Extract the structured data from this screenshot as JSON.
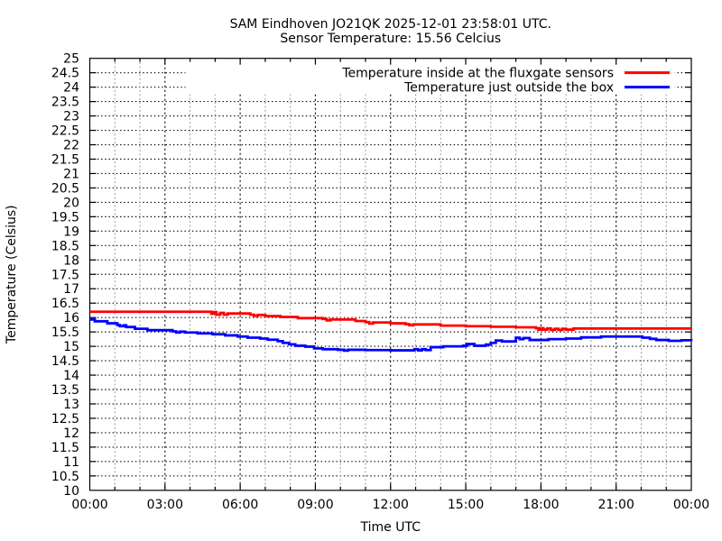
{
  "chart_data": {
    "type": "line",
    "title": "SAM Eindhoven JO21QK 2025-12-01 23:58:01 UTC.",
    "subtitle": "Sensor Temperature: 15.56 Celcius",
    "xlabel": "Time UTC",
    "ylabel": "Temperature (Celsius)",
    "xlim_hours": [
      0,
      24
    ],
    "ylim": [
      10,
      25
    ],
    "y_tick_step": 0.5,
    "x_major_tick_hours": 3,
    "x_minor_tick_hours": 1,
    "x_tick_labels": [
      "00:00",
      "03:00",
      "06:00",
      "09:00",
      "12:00",
      "15:00",
      "18:00",
      "21:00",
      "00:00"
    ],
    "grid": true,
    "legend_position": "top-right-inside",
    "colors": {
      "grid_major": "#000000",
      "grid_minor": "#9b9b9b",
      "axis": "#000000",
      "text": "#000000"
    },
    "series": [
      {
        "name": "Temperature inside at the fluxgate sensors",
        "color": "#ff0000",
        "points_hour_celsius": [
          [
            0,
            16.2
          ],
          [
            4.85,
            16.13
          ],
          [
            4.95,
            16.19
          ],
          [
            5.05,
            16.1
          ],
          [
            5.2,
            16.16
          ],
          [
            5.35,
            16.1
          ],
          [
            5.5,
            16.14
          ],
          [
            6.4,
            16.1
          ],
          [
            6.55,
            16.06
          ],
          [
            6.7,
            16.09
          ],
          [
            7.0,
            16.05
          ],
          [
            7.6,
            16.02
          ],
          [
            8.3,
            15.98
          ],
          [
            9.3,
            15.95
          ],
          [
            9.45,
            15.9
          ],
          [
            9.6,
            15.93
          ],
          [
            10.6,
            15.88
          ],
          [
            11.0,
            15.84
          ],
          [
            11.15,
            15.79
          ],
          [
            11.3,
            15.83
          ],
          [
            12.0,
            15.8
          ],
          [
            12.6,
            15.77
          ],
          [
            12.75,
            15.73
          ],
          [
            12.9,
            15.76
          ],
          [
            14.0,
            15.72
          ],
          [
            15.0,
            15.7
          ],
          [
            16.0,
            15.68
          ],
          [
            17.0,
            15.66
          ],
          [
            17.8,
            15.63
          ],
          [
            17.9,
            15.58
          ],
          [
            18.0,
            15.63
          ],
          [
            18.1,
            15.58
          ],
          [
            18.25,
            15.62
          ],
          [
            18.4,
            15.57
          ],
          [
            18.55,
            15.61
          ],
          [
            18.7,
            15.57
          ],
          [
            18.85,
            15.61
          ],
          [
            19.0,
            15.58
          ],
          [
            19.3,
            15.62
          ],
          [
            24,
            15.62
          ]
        ]
      },
      {
        "name": "Temperature just outside the box",
        "color": "#0000ff",
        "points_hour_celsius": [
          [
            0,
            15.93
          ],
          [
            0.2,
            15.87
          ],
          [
            0.7,
            15.8
          ],
          [
            1.1,
            15.74
          ],
          [
            1.2,
            15.7
          ],
          [
            1.35,
            15.73
          ],
          [
            1.45,
            15.67
          ],
          [
            1.8,
            15.61
          ],
          [
            2.3,
            15.56
          ],
          [
            3.3,
            15.52
          ],
          [
            3.45,
            15.48
          ],
          [
            3.6,
            15.51
          ],
          [
            3.8,
            15.48
          ],
          [
            4.3,
            15.45
          ],
          [
            4.9,
            15.42
          ],
          [
            5.4,
            15.38
          ],
          [
            5.9,
            15.34
          ],
          [
            6.3,
            15.3
          ],
          [
            6.8,
            15.27
          ],
          [
            7.1,
            15.23
          ],
          [
            7.5,
            15.18
          ],
          [
            7.7,
            15.12
          ],
          [
            7.95,
            15.07
          ],
          [
            8.2,
            15.02
          ],
          [
            8.6,
            14.99
          ],
          [
            8.95,
            14.93
          ],
          [
            9.3,
            14.9
          ],
          [
            9.9,
            14.88
          ],
          [
            10.15,
            14.85
          ],
          [
            10.3,
            14.88
          ],
          [
            11.0,
            14.87
          ],
          [
            12.0,
            14.86
          ],
          [
            12.95,
            14.9
          ],
          [
            13.1,
            14.86
          ],
          [
            13.25,
            14.9
          ],
          [
            13.4,
            14.87
          ],
          [
            13.6,
            14.97
          ],
          [
            14.1,
            15.0
          ],
          [
            14.9,
            15.02
          ],
          [
            15.05,
            15.08
          ],
          [
            15.35,
            15.02
          ],
          [
            15.8,
            15.06
          ],
          [
            16.0,
            15.12
          ],
          [
            16.2,
            15.2
          ],
          [
            16.45,
            15.17
          ],
          [
            17.0,
            15.3
          ],
          [
            17.15,
            15.25
          ],
          [
            17.3,
            15.29
          ],
          [
            17.55,
            15.22
          ],
          [
            18.3,
            15.25
          ],
          [
            19.0,
            15.27
          ],
          [
            19.6,
            15.31
          ],
          [
            20.4,
            15.34
          ],
          [
            22.05,
            15.3
          ],
          [
            22.35,
            15.26
          ],
          [
            22.6,
            15.22
          ],
          [
            23.1,
            15.19
          ],
          [
            23.6,
            15.21
          ],
          [
            24,
            15.2
          ]
        ]
      }
    ]
  }
}
